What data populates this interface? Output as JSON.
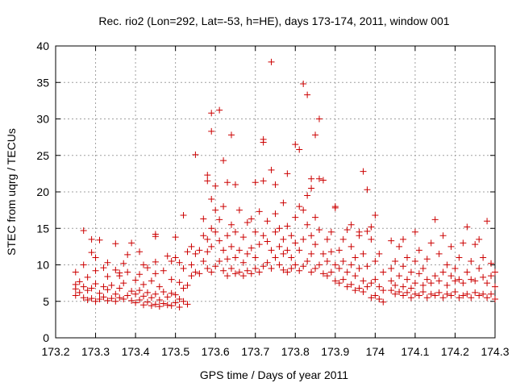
{
  "chart_data": {
    "type": "scatter",
    "title": "Rec. rio2 (Lon=292, Lat=-53, h=HE), days 173-174, 2011, window 001",
    "xlabel": "GPS time / Days of year 2011",
    "ylabel": "STEC from uqrg / TECUs",
    "xlim": [
      173.2,
      174.3
    ],
    "ylim": [
      0,
      40
    ],
    "x_ticks": [
      173.2,
      173.3,
      173.4,
      173.5,
      173.6,
      173.7,
      173.8,
      173.9,
      174.0,
      174.1,
      174.2,
      174.3
    ],
    "x_tick_labels": [
      "173.2",
      "173.3",
      "173.4",
      "173.5",
      "173.6",
      "173.7",
      "173.8",
      "173.9",
      "174",
      "174.1",
      "174.2",
      "174.3"
    ],
    "y_ticks": [
      0,
      5,
      10,
      15,
      20,
      25,
      30,
      35,
      40
    ],
    "y_tick_labels": [
      "0",
      "5",
      "10",
      "15",
      "20",
      "25",
      "30",
      "35",
      "40"
    ],
    "grid": true,
    "marker": "+",
    "marker_color": "#cc0000",
    "points": [
      [
        173.25,
        5.8
      ],
      [
        173.25,
        6.7
      ],
      [
        173.25,
        7.3
      ],
      [
        173.25,
        9.0
      ],
      [
        173.26,
        6.2
      ],
      [
        173.26,
        7.7
      ],
      [
        173.27,
        5.5
      ],
      [
        173.27,
        7.0
      ],
      [
        173.27,
        10.0
      ],
      [
        173.27,
        14.7
      ],
      [
        173.28,
        5.2
      ],
      [
        173.28,
        6.5
      ],
      [
        173.28,
        8.3
      ],
      [
        173.29,
        5.4
      ],
      [
        173.29,
        6.8
      ],
      [
        173.29,
        11.7
      ],
      [
        173.29,
        13.5
      ],
      [
        173.3,
        5.0
      ],
      [
        173.3,
        7.4
      ],
      [
        173.3,
        9.2
      ],
      [
        173.3,
        11.0
      ],
      [
        173.31,
        5.3
      ],
      [
        173.31,
        6.1
      ],
      [
        173.31,
        13.4
      ],
      [
        173.32,
        5.6
      ],
      [
        173.32,
        7.0
      ],
      [
        173.32,
        9.6
      ],
      [
        173.33,
        5.1
      ],
      [
        173.33,
        6.6
      ],
      [
        173.33,
        8.4
      ],
      [
        173.33,
        10.3
      ],
      [
        173.34,
        5.4
      ],
      [
        173.34,
        7.2
      ],
      [
        173.35,
        5.0
      ],
      [
        173.35,
        6.0
      ],
      [
        173.35,
        9.3
      ],
      [
        173.35,
        12.9
      ],
      [
        173.36,
        5.5
      ],
      [
        173.36,
        6.8
      ],
      [
        173.36,
        8.5
      ],
      [
        173.37,
        5.3
      ],
      [
        173.37,
        7.5
      ],
      [
        173.37,
        10.2
      ],
      [
        173.38,
        5.8
      ],
      [
        173.38,
        9.0
      ],
      [
        173.39,
        5.1
      ],
      [
        173.39,
        6.4
      ],
      [
        173.39,
        13.0
      ],
      [
        173.4,
        4.8
      ],
      [
        173.4,
        6.0
      ],
      [
        173.4,
        7.9
      ],
      [
        173.41,
        5.2
      ],
      [
        173.41,
        6.5
      ],
      [
        173.41,
        8.7
      ],
      [
        173.41,
        11.8
      ],
      [
        173.42,
        4.5
      ],
      [
        173.42,
        5.7
      ],
      [
        173.42,
        7.3
      ],
      [
        173.43,
        4.9
      ],
      [
        173.43,
        6.2
      ],
      [
        173.43,
        9.6
      ],
      [
        173.44,
        4.4
      ],
      [
        173.44,
        5.5
      ],
      [
        173.44,
        7.8
      ],
      [
        173.45,
        4.6
      ],
      [
        173.45,
        6.0
      ],
      [
        173.45,
        8.8
      ],
      [
        173.45,
        10.4
      ],
      [
        173.46,
        4.3
      ],
      [
        173.46,
        5.2
      ],
      [
        173.46,
        7.0
      ],
      [
        173.47,
        4.7
      ],
      [
        173.47,
        6.3
      ],
      [
        173.47,
        9.2
      ],
      [
        173.48,
        4.5
      ],
      [
        173.48,
        5.6
      ],
      [
        173.49,
        4.4
      ],
      [
        173.49,
        6.1
      ],
      [
        173.49,
        8.0
      ],
      [
        173.49,
        10.5
      ],
      [
        173.5,
        4.8
      ],
      [
        173.5,
        5.9
      ],
      [
        173.5,
        13.8
      ],
      [
        173.51,
        4.2
      ],
      [
        173.51,
        5.3
      ],
      [
        173.51,
        7.6
      ],
      [
        173.51,
        10.3
      ],
      [
        173.52,
        5.0
      ],
      [
        173.52,
        6.8
      ],
      [
        173.52,
        9.5
      ],
      [
        173.53,
        4.6
      ],
      [
        173.53,
        7.2
      ],
      [
        173.53,
        11.8
      ],
      [
        173.45,
        14.2
      ],
      [
        173.45,
        13.9
      ],
      [
        173.5,
        11.0
      ],
      [
        173.48,
        11.2
      ],
      [
        173.42,
        10.0
      ],
      [
        173.38,
        11.4
      ],
      [
        173.36,
        8.9
      ],
      [
        173.52,
        16.8
      ],
      [
        173.54,
        8.5
      ],
      [
        173.54,
        10.0
      ],
      [
        173.54,
        12.5
      ],
      [
        173.55,
        25.1
      ],
      [
        173.55,
        9.0
      ],
      [
        173.55,
        11.5
      ],
      [
        173.56,
        8.8
      ],
      [
        173.56,
        12.0
      ],
      [
        173.57,
        10.5
      ],
      [
        173.57,
        14.0
      ],
      [
        173.57,
        16.3
      ],
      [
        173.58,
        9.5
      ],
      [
        173.58,
        11.8
      ],
      [
        173.58,
        13.5
      ],
      [
        173.58,
        21.5
      ],
      [
        173.58,
        22.3
      ],
      [
        173.59,
        9.0
      ],
      [
        173.59,
        12.5
      ],
      [
        173.59,
        15.0
      ],
      [
        173.59,
        19.0
      ],
      [
        173.59,
        28.3
      ],
      [
        173.59,
        30.8
      ],
      [
        173.6,
        9.8
      ],
      [
        173.6,
        14.5
      ],
      [
        173.6,
        17.5
      ],
      [
        173.6,
        20.8
      ],
      [
        173.61,
        31.2
      ],
      [
        173.61,
        10.5
      ],
      [
        173.61,
        13.3
      ],
      [
        173.61,
        16.2
      ],
      [
        173.62,
        9.2
      ],
      [
        173.62,
        12.0
      ],
      [
        173.62,
        18.0
      ],
      [
        173.62,
        24.3
      ],
      [
        173.63,
        8.5
      ],
      [
        173.63,
        10.8
      ],
      [
        173.63,
        14.0
      ],
      [
        173.63,
        21.3
      ],
      [
        173.64,
        9.5
      ],
      [
        173.64,
        12.5
      ],
      [
        173.64,
        15.5
      ],
      [
        173.64,
        27.8
      ],
      [
        173.65,
        8.8
      ],
      [
        173.65,
        11.0
      ],
      [
        173.65,
        14.5
      ],
      [
        173.65,
        21.0
      ],
      [
        173.66,
        9.0
      ],
      [
        173.66,
        12.0
      ],
      [
        173.66,
        17.5
      ],
      [
        173.67,
        8.5
      ],
      [
        173.67,
        10.3
      ],
      [
        173.67,
        13.8
      ],
      [
        173.68,
        9.2
      ],
      [
        173.68,
        11.5
      ],
      [
        173.68,
        15.8
      ],
      [
        173.69,
        8.8
      ],
      [
        173.69,
        12.3
      ],
      [
        173.69,
        16.3
      ],
      [
        173.7,
        9.5
      ],
      [
        173.7,
        11.0
      ],
      [
        173.7,
        14.5
      ],
      [
        173.7,
        21.3
      ],
      [
        173.71,
        9.0
      ],
      [
        173.71,
        12.8
      ],
      [
        173.71,
        17.3
      ],
      [
        173.72,
        26.8
      ],
      [
        173.72,
        27.2
      ],
      [
        173.72,
        9.8
      ],
      [
        173.72,
        14.0
      ],
      [
        173.72,
        21.5
      ],
      [
        173.73,
        10.3
      ],
      [
        173.73,
        13.2
      ],
      [
        173.73,
        16.0
      ],
      [
        173.74,
        37.8
      ],
      [
        173.74,
        23.0
      ],
      [
        173.74,
        9.5
      ],
      [
        173.74,
        12.0
      ],
      [
        173.75,
        11.0
      ],
      [
        173.75,
        14.5
      ],
      [
        173.75,
        17.0
      ],
      [
        173.75,
        21.0
      ],
      [
        173.76,
        10.0
      ],
      [
        173.76,
        12.5
      ],
      [
        173.76,
        15.0
      ],
      [
        173.77,
        9.3
      ],
      [
        173.77,
        11.5
      ],
      [
        173.77,
        13.5
      ],
      [
        173.77,
        18.5
      ],
      [
        173.78,
        9.0
      ],
      [
        173.78,
        12.0
      ],
      [
        173.78,
        15.3
      ],
      [
        173.78,
        22.5
      ],
      [
        173.79,
        9.5
      ],
      [
        173.79,
        11.0
      ],
      [
        173.79,
        14.0
      ],
      [
        173.8,
        10.0
      ],
      [
        173.8,
        13.0
      ],
      [
        173.8,
        16.5
      ],
      [
        173.8,
        26.5
      ],
      [
        173.81,
        9.2
      ],
      [
        173.81,
        12.0
      ],
      [
        173.81,
        18.0
      ],
      [
        173.81,
        25.8
      ],
      [
        173.82,
        34.8
      ],
      [
        173.82,
        9.8
      ],
      [
        173.82,
        13.5
      ],
      [
        173.82,
        17.5
      ],
      [
        173.83,
        33.3
      ],
      [
        173.83,
        10.5
      ],
      [
        173.83,
        15.5
      ],
      [
        173.83,
        19.5
      ],
      [
        173.84,
        9.0
      ],
      [
        173.84,
        11.5
      ],
      [
        173.84,
        14.0
      ],
      [
        173.84,
        20.5
      ],
      [
        173.84,
        21.8
      ],
      [
        173.85,
        9.5
      ],
      [
        173.85,
        12.8
      ],
      [
        173.85,
        16.5
      ],
      [
        173.85,
        27.8
      ],
      [
        173.86,
        10.0
      ],
      [
        173.86,
        14.8
      ],
      [
        173.86,
        21.8
      ],
      [
        173.86,
        30.0
      ],
      [
        173.87,
        8.8
      ],
      [
        173.87,
        11.5
      ],
      [
        173.87,
        21.6
      ],
      [
        173.88,
        8.5
      ],
      [
        173.88,
        10.5
      ],
      [
        173.88,
        13.5
      ],
      [
        173.89,
        9.0
      ],
      [
        173.89,
        11.8
      ],
      [
        173.89,
        14.5
      ],
      [
        173.9,
        7.8
      ],
      [
        173.9,
        10.0
      ],
      [
        173.9,
        18.0
      ],
      [
        173.9,
        17.8
      ],
      [
        173.91,
        7.5
      ],
      [
        173.91,
        9.5
      ],
      [
        173.91,
        12.0
      ],
      [
        173.92,
        8.0
      ],
      [
        173.92,
        10.5
      ],
      [
        173.92,
        13.5
      ],
      [
        173.93,
        7.0
      ],
      [
        173.93,
        9.0
      ],
      [
        173.93,
        14.8
      ],
      [
        173.94,
        7.3
      ],
      [
        173.94,
        10.0
      ],
      [
        173.94,
        12.5
      ],
      [
        173.94,
        15.5
      ],
      [
        173.95,
        6.5
      ],
      [
        173.95,
        8.5
      ],
      [
        173.95,
        11.0
      ],
      [
        173.96,
        6.8
      ],
      [
        173.96,
        9.5
      ],
      [
        173.96,
        14.5
      ],
      [
        173.97,
        6.3
      ],
      [
        173.97,
        7.8
      ],
      [
        173.97,
        11.5
      ],
      [
        173.97,
        22.8
      ],
      [
        173.98,
        20.3
      ],
      [
        173.98,
        7.0
      ],
      [
        173.98,
        9.8
      ],
      [
        173.99,
        5.5
      ],
      [
        173.99,
        7.5
      ],
      [
        173.99,
        13.5
      ],
      [
        174.0,
        5.8
      ],
      [
        174.0,
        8.0
      ],
      [
        174.0,
        10.5
      ],
      [
        174.01,
        5.3
      ],
      [
        174.01,
        7.0
      ],
      [
        174.01,
        11.5
      ],
      [
        174.02,
        4.9
      ],
      [
        174.02,
        6.5
      ],
      [
        174.02,
        9.0
      ],
      [
        174.0,
        16.8
      ],
      [
        173.98,
        14.6
      ],
      [
        173.99,
        15.2
      ],
      [
        173.96,
        14.0
      ],
      [
        174.04,
        6.5
      ],
      [
        174.04,
        7.8
      ],
      [
        174.04,
        9.5
      ],
      [
        174.04,
        13.3
      ],
      [
        174.05,
        6.0
      ],
      [
        174.05,
        7.2
      ],
      [
        174.05,
        10.5
      ],
      [
        174.06,
        6.3
      ],
      [
        174.06,
        8.5
      ],
      [
        174.06,
        12.5
      ],
      [
        174.07,
        5.8
      ],
      [
        174.07,
        7.0
      ],
      [
        174.07,
        9.8
      ],
      [
        174.07,
        13.5
      ],
      [
        174.08,
        6.2
      ],
      [
        174.08,
        8.0
      ],
      [
        174.08,
        11.0
      ],
      [
        174.09,
        5.5
      ],
      [
        174.09,
        6.8
      ],
      [
        174.09,
        9.0
      ],
      [
        174.1,
        6.0
      ],
      [
        174.1,
        7.5
      ],
      [
        174.1,
        10.5
      ],
      [
        174.1,
        14.5
      ],
      [
        174.11,
        5.8
      ],
      [
        174.11,
        8.8
      ],
      [
        174.11,
        12.0
      ],
      [
        174.12,
        6.3
      ],
      [
        174.12,
        7.2
      ],
      [
        174.12,
        9.5
      ],
      [
        174.13,
        5.5
      ],
      [
        174.13,
        8.0
      ],
      [
        174.13,
        10.8
      ],
      [
        174.14,
        6.0
      ],
      [
        174.14,
        7.5
      ],
      [
        174.14,
        13.0
      ],
      [
        174.15,
        5.8
      ],
      [
        174.15,
        8.5
      ],
      [
        174.15,
        16.2
      ],
      [
        174.16,
        6.2
      ],
      [
        174.16,
        7.8
      ],
      [
        174.16,
        11.5
      ],
      [
        174.17,
        5.5
      ],
      [
        174.17,
        9.0
      ],
      [
        174.17,
        14.0
      ],
      [
        174.18,
        6.0
      ],
      [
        174.18,
        7.2
      ],
      [
        174.18,
        10.0
      ],
      [
        174.19,
        5.8
      ],
      [
        174.19,
        8.5
      ],
      [
        174.19,
        12.5
      ],
      [
        174.2,
        6.3
      ],
      [
        174.2,
        7.8
      ],
      [
        174.2,
        9.5
      ],
      [
        174.21,
        5.5
      ],
      [
        174.21,
        8.0
      ],
      [
        174.21,
        11.0
      ],
      [
        174.22,
        5.8
      ],
      [
        174.22,
        7.5
      ],
      [
        174.22,
        13.0
      ],
      [
        174.23,
        6.0
      ],
      [
        174.23,
        9.0
      ],
      [
        174.23,
        15.2
      ],
      [
        174.24,
        5.5
      ],
      [
        174.24,
        8.0
      ],
      [
        174.24,
        10.5
      ],
      [
        174.25,
        6.2
      ],
      [
        174.25,
        7.8
      ],
      [
        174.25,
        12.8
      ],
      [
        174.26,
        5.8
      ],
      [
        174.26,
        9.5
      ],
      [
        174.26,
        13.5
      ],
      [
        174.27,
        6.0
      ],
      [
        174.27,
        8.3
      ],
      [
        174.27,
        11.0
      ],
      [
        174.28,
        5.5
      ],
      [
        174.28,
        7.5
      ],
      [
        174.28,
        16.0
      ],
      [
        174.29,
        6.0
      ],
      [
        174.29,
        8.5
      ],
      [
        174.29,
        10.2
      ],
      [
        174.3,
        5.3
      ],
      [
        174.3,
        7.0
      ],
      [
        174.3,
        9.0
      ]
    ]
  }
}
